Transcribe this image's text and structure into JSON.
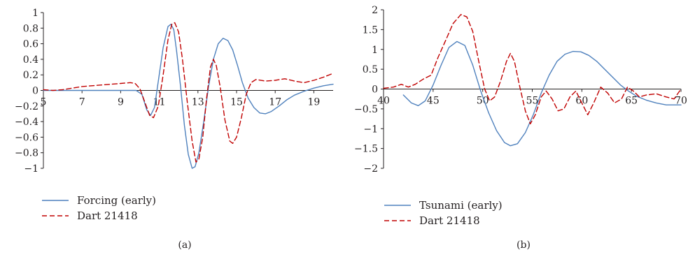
{
  "chart_data": [
    {
      "type": "line",
      "panel_label": "(a)",
      "xlim": [
        5,
        20
      ],
      "ylim": [
        -1,
        1
      ],
      "x_ticks": [
        5,
        7,
        9,
        11,
        13,
        15,
        17,
        19
      ],
      "y_ticks": [
        -1,
        -0.8,
        -0.6,
        -0.4,
        -0.2,
        0,
        0.2,
        0.4,
        0.6,
        0.8,
        1
      ],
      "x_tick_labels": [
        "5",
        "7",
        "9",
        "11",
        "13",
        "15",
        "17",
        "19"
      ],
      "y_tick_labels": [
        "−1",
        "−0.8",
        "−0.6",
        "−0.4",
        "−0.2",
        "0",
        "0.2",
        "0.4",
        "0.6",
        "0.8",
        "1"
      ],
      "legend_position": "bottom-left",
      "grid": false,
      "series": [
        {
          "name": "Forcing (early)",
          "color": "#4f81bd",
          "dash": "solid",
          "points": [
            [
              5,
              0
            ],
            [
              6,
              0
            ],
            [
              7,
              0
            ],
            [
              8,
              0
            ],
            [
              9,
              0
            ],
            [
              9.8,
              0
            ],
            [
              10.1,
              -0.05
            ],
            [
              10.35,
              -0.25
            ],
            [
              10.55,
              -0.32
            ],
            [
              10.75,
              -0.22
            ],
            [
              10.95,
              0.12
            ],
            [
              11.2,
              0.55
            ],
            [
              11.45,
              0.82
            ],
            [
              11.6,
              0.85
            ],
            [
              11.75,
              0.78
            ],
            [
              11.9,
              0.5
            ],
            [
              12.1,
              0.05
            ],
            [
              12.3,
              -0.45
            ],
            [
              12.5,
              -0.82
            ],
            [
              12.7,
              -1.0
            ],
            [
              12.85,
              -0.98
            ],
            [
              13.05,
              -0.8
            ],
            [
              13.3,
              -0.4
            ],
            [
              13.55,
              0.05
            ],
            [
              13.8,
              0.4
            ],
            [
              14.05,
              0.6
            ],
            [
              14.3,
              0.67
            ],
            [
              14.55,
              0.64
            ],
            [
              14.8,
              0.52
            ],
            [
              15.05,
              0.32
            ],
            [
              15.3,
              0.1
            ],
            [
              15.6,
              -0.1
            ],
            [
              15.9,
              -0.22
            ],
            [
              16.2,
              -0.29
            ],
            [
              16.5,
              -0.3
            ],
            [
              16.8,
              -0.27
            ],
            [
              17.2,
              -0.2
            ],
            [
              17.6,
              -0.12
            ],
            [
              18.0,
              -0.06
            ],
            [
              18.5,
              -0.01
            ],
            [
              19.0,
              0.03
            ],
            [
              19.5,
              0.06
            ],
            [
              20,
              0.08
            ]
          ]
        },
        {
          "name": "Dart 21418",
          "color": "#c00000",
          "dash": "dashed",
          "points": [
            [
              5,
              0.01
            ],
            [
              5.5,
              0.0
            ],
            [
              6,
              0.01
            ],
            [
              6.5,
              0.03
            ],
            [
              7,
              0.05
            ],
            [
              7.5,
              0.06
            ],
            [
              8,
              0.07
            ],
            [
              8.5,
              0.08
            ],
            [
              9,
              0.09
            ],
            [
              9.5,
              0.1
            ],
            [
              9.75,
              0.09
            ],
            [
              10.0,
              0.02
            ],
            [
              10.25,
              -0.15
            ],
            [
              10.5,
              -0.32
            ],
            [
              10.7,
              -0.35
            ],
            [
              10.95,
              -0.2
            ],
            [
              11.2,
              0.2
            ],
            [
              11.45,
              0.65
            ],
            [
              11.65,
              0.85
            ],
            [
              11.8,
              0.87
            ],
            [
              12.0,
              0.75
            ],
            [
              12.2,
              0.4
            ],
            [
              12.45,
              -0.15
            ],
            [
              12.7,
              -0.65
            ],
            [
              12.9,
              -0.92
            ],
            [
              13.05,
              -0.88
            ],
            [
              13.25,
              -0.6
            ],
            [
              13.45,
              -0.1
            ],
            [
              13.65,
              0.3
            ],
            [
              13.8,
              0.4
            ],
            [
              13.95,
              0.32
            ],
            [
              14.15,
              0.05
            ],
            [
              14.4,
              -0.38
            ],
            [
              14.65,
              -0.65
            ],
            [
              14.8,
              -0.68
            ],
            [
              15.0,
              -0.6
            ],
            [
              15.25,
              -0.35
            ],
            [
              15.5,
              -0.05
            ],
            [
              15.75,
              0.1
            ],
            [
              16.0,
              0.14
            ],
            [
              16.5,
              0.12
            ],
            [
              17.0,
              0.13
            ],
            [
              17.5,
              0.15
            ],
            [
              18.0,
              0.12
            ],
            [
              18.5,
              0.1
            ],
            [
              19.0,
              0.13
            ],
            [
              19.5,
              0.17
            ],
            [
              20,
              0.22
            ]
          ]
        }
      ]
    },
    {
      "type": "line",
      "panel_label": "(b)",
      "xlim": [
        40,
        70
      ],
      "ylim": [
        -2,
        2
      ],
      "x_ticks": [
        40,
        45,
        50,
        55,
        60,
        65,
        70
      ],
      "y_ticks": [
        -2,
        -1.5,
        -1,
        -0.5,
        0,
        0.5,
        1,
        1.5,
        2
      ],
      "x_tick_labels": [
        "40",
        "45",
        "50",
        "55",
        "60",
        "65",
        "70"
      ],
      "y_tick_labels": [
        "−2",
        "−1.5",
        "−1",
        "−0.5",
        "0",
        "0.5",
        "1",
        "1.5",
        "2"
      ],
      "legend_position": "bottom-left",
      "grid": false,
      "series": [
        {
          "name": "Tsunami (early)",
          "color": "#4f81bd",
          "dash": "solid",
          "points": [
            [
              42,
              -0.15
            ],
            [
              42.8,
              -0.35
            ],
            [
              43.5,
              -0.42
            ],
            [
              44.2,
              -0.3
            ],
            [
              45,
              0.1
            ],
            [
              45.8,
              0.6
            ],
            [
              46.6,
              1.05
            ],
            [
              47.4,
              1.2
            ],
            [
              48.2,
              1.1
            ],
            [
              49,
              0.6
            ],
            [
              49.8,
              -0.05
            ],
            [
              50.6,
              -0.6
            ],
            [
              51.4,
              -1.05
            ],
            [
              52.2,
              -1.35
            ],
            [
              52.8,
              -1.43
            ],
            [
              53.5,
              -1.38
            ],
            [
              54.3,
              -1.1
            ],
            [
              55.1,
              -0.65
            ],
            [
              55.9,
              -0.1
            ],
            [
              56.7,
              0.35
            ],
            [
              57.5,
              0.7
            ],
            [
              58.3,
              0.88
            ],
            [
              59.1,
              0.95
            ],
            [
              59.9,
              0.94
            ],
            [
              60.7,
              0.85
            ],
            [
              61.5,
              0.7
            ],
            [
              62.3,
              0.5
            ],
            [
              63.1,
              0.3
            ],
            [
              63.9,
              0.1
            ],
            [
              64.7,
              -0.05
            ],
            [
              65.5,
              -0.18
            ],
            [
              66.5,
              -0.28
            ],
            [
              67.5,
              -0.35
            ],
            [
              68.5,
              -0.4
            ],
            [
              70,
              -0.4
            ]
          ]
        },
        {
          "name": "Dart 21418",
          "color": "#c00000",
          "dash": "dashed",
          "points": [
            [
              40,
              0.02
            ],
            [
              41,
              0.05
            ],
            [
              41.8,
              0.12
            ],
            [
              42.5,
              0.05
            ],
            [
              43.2,
              0.12
            ],
            [
              44,
              0.25
            ],
            [
              44.8,
              0.35
            ],
            [
              45.5,
              0.8
            ],
            [
              46.3,
              1.25
            ],
            [
              47,
              1.65
            ],
            [
              47.8,
              1.88
            ],
            [
              48.4,
              1.82
            ],
            [
              49,
              1.45
            ],
            [
              49.6,
              0.7
            ],
            [
              50.2,
              0.0
            ],
            [
              50.7,
              -0.3
            ],
            [
              51.2,
              -0.2
            ],
            [
              51.8,
              0.2
            ],
            [
              52.4,
              0.7
            ],
            [
              52.8,
              0.9
            ],
            [
              53.2,
              0.7
            ],
            [
              53.7,
              0.1
            ],
            [
              54.3,
              -0.55
            ],
            [
              54.8,
              -0.88
            ],
            [
              55.3,
              -0.65
            ],
            [
              55.9,
              -0.2
            ],
            [
              56.4,
              -0.05
            ],
            [
              57,
              -0.25
            ],
            [
              57.6,
              -0.55
            ],
            [
              58.2,
              -0.5
            ],
            [
              58.8,
              -0.2
            ],
            [
              59.4,
              -0.05
            ],
            [
              60.0,
              -0.35
            ],
            [
              60.6,
              -0.65
            ],
            [
              61.2,
              -0.35
            ],
            [
              61.9,
              0.05
            ],
            [
              62.6,
              -0.1
            ],
            [
              63.3,
              -0.35
            ],
            [
              64,
              -0.25
            ],
            [
              64.6,
              0.05
            ],
            [
              65.2,
              -0.05
            ],
            [
              65.8,
              -0.2
            ],
            [
              66.5,
              -0.15
            ],
            [
              67.5,
              -0.12
            ],
            [
              68.5,
              -0.2
            ],
            [
              69.3,
              -0.25
            ],
            [
              70,
              0.0
            ]
          ]
        }
      ]
    }
  ]
}
